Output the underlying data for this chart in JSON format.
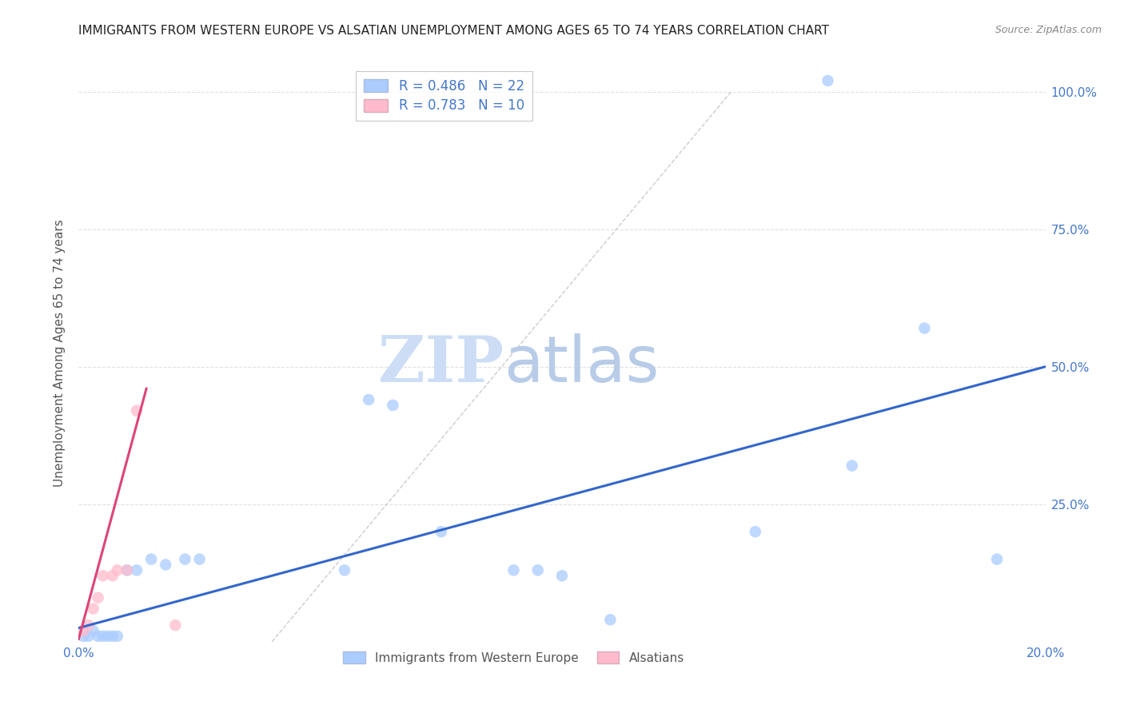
{
  "title": "IMMIGRANTS FROM WESTERN EUROPE VS ALSATIAN UNEMPLOYMENT AMONG AGES 65 TO 74 YEARS CORRELATION CHART",
  "source": "Source: ZipAtlas.com",
  "ylabel": "Unemployment Among Ages 65 to 74 years",
  "xlim": [
    0.0,
    0.2
  ],
  "ylim": [
    0.0,
    1.05
  ],
  "xticks": [
    0.0,
    0.04,
    0.08,
    0.12,
    0.16,
    0.2
  ],
  "xtick_labels": [
    "0.0%",
    "",
    "",
    "",
    "",
    "20.0%"
  ],
  "ytick_labels_right": [
    "25.0%",
    "50.0%",
    "75.0%",
    "100.0%"
  ],
  "yticks_right": [
    0.25,
    0.5,
    0.75,
    1.0
  ],
  "legend_label1": "Immigrants from Western Europe",
  "legend_label2": "Alsatians",
  "blue_scatter_x": [
    0.001,
    0.002,
    0.003,
    0.004,
    0.005,
    0.006,
    0.007,
    0.008,
    0.01,
    0.012,
    0.015,
    0.018,
    0.022,
    0.025,
    0.055,
    0.06,
    0.065,
    0.075,
    0.09,
    0.095,
    0.1,
    0.11,
    0.14,
    0.155,
    0.16,
    0.175,
    0.19
  ],
  "blue_scatter_y": [
    0.01,
    0.01,
    0.02,
    0.01,
    0.01,
    0.01,
    0.01,
    0.01,
    0.13,
    0.13,
    0.15,
    0.14,
    0.15,
    0.15,
    0.13,
    0.44,
    0.43,
    0.2,
    0.13,
    0.13,
    0.12,
    0.04,
    0.2,
    1.02,
    0.32,
    0.57,
    0.15
  ],
  "pink_scatter_x": [
    0.001,
    0.002,
    0.003,
    0.004,
    0.005,
    0.007,
    0.008,
    0.01,
    0.012,
    0.02
  ],
  "pink_scatter_y": [
    0.02,
    0.03,
    0.06,
    0.08,
    0.12,
    0.12,
    0.13,
    0.13,
    0.42,
    0.03
  ],
  "blue_line_x": [
    0.0,
    0.2
  ],
  "blue_line_y": [
    0.025,
    0.5
  ],
  "pink_line_x": [
    0.0,
    0.014
  ],
  "pink_line_y": [
    0.005,
    0.46
  ],
  "diag_line_x": [
    0.04,
    0.135
  ],
  "diag_line_y": [
    0.0,
    1.0
  ],
  "scatter_blue_color": "#aaccff",
  "scatter_pink_color": "#ffbbcc",
  "line_blue_color": "#3366cc",
  "line_pink_color": "#dd4477",
  "diag_line_color": "#cccccc",
  "watermark_zip_color": "#ccddf5",
  "watermark_atlas_color": "#b8cce8",
  "background_color": "#ffffff",
  "title_fontsize": 11,
  "axis_color": "#4477cc",
  "label_color": "#555555",
  "grid_color": "#e0e0e0",
  "source_color": "#888888"
}
